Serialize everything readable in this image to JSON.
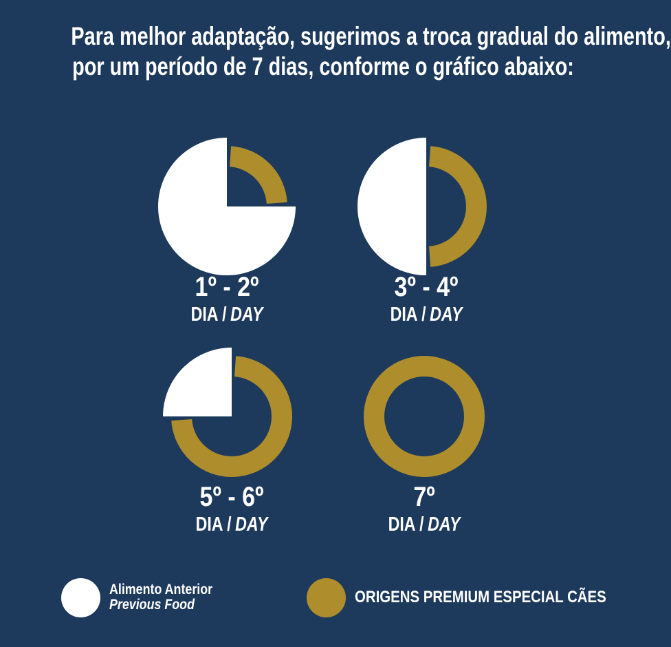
{
  "background_color": "#1D3A5C",
  "title": {
    "line1": "Para melhor adaptação, sugerimos a troca gradual do alimento,",
    "line2": "por um período de 7 dias, conforme o gráfico abaixo:"
  },
  "chart_data": {
    "type": "pie",
    "title": "Para melhor adaptação, sugerimos a troca gradual do alimento, por um período de 7 dias, conforme o gráfico abaixo:",
    "colors": {
      "previous_food": "#FFFFFF",
      "new_food": "#AE8D2C"
    },
    "stages": [
      {
        "label": "1º - 2º",
        "dia": "DIA",
        "sep": "/",
        "day": "DAY",
        "previous_food_pct": 75,
        "new_food_pct": 25
      },
      {
        "label": "3º - 4º",
        "dia": "DIA",
        "sep": "/",
        "day": "DAY",
        "previous_food_pct": 50,
        "new_food_pct": 50
      },
      {
        "label": "5º - 6º",
        "dia": "DIA",
        "sep": "/",
        "day": "DAY",
        "previous_food_pct": 25,
        "new_food_pct": 75
      },
      {
        "label": "7º",
        "dia": "DIA",
        "sep": "/",
        "day": "DAY",
        "previous_food_pct": 0,
        "new_food_pct": 100
      }
    ],
    "legend_position": "bottom"
  },
  "legend": {
    "previous": {
      "line1": "Alimento Anterior",
      "line2": "Previous Food",
      "swatch_color": "#FFFFFF"
    },
    "new": {
      "label": "ORIGENS PREMIUM ESPECIAL CÃES",
      "swatch_color": "#AE8D2C"
    }
  }
}
